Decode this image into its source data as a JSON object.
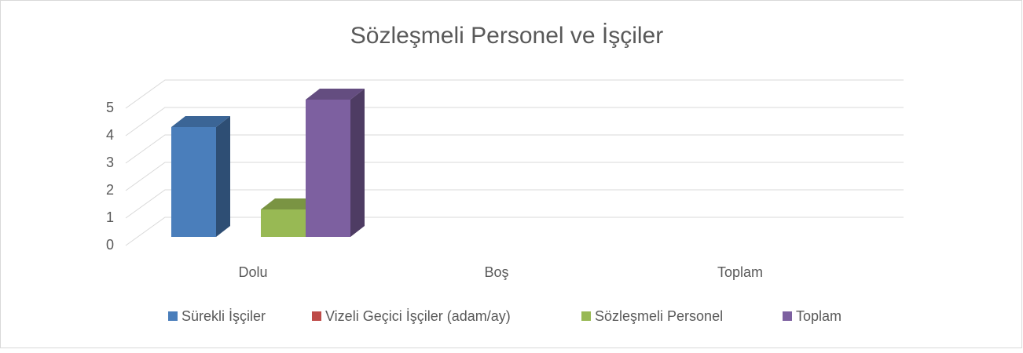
{
  "chart_data": {
    "type": "bar3d",
    "title": "Sözleşmeli Personel ve İşçiler",
    "categories": [
      "Dolu",
      "Boş",
      "Toplam"
    ],
    "series": [
      {
        "name": "Sürekli İşçiler",
        "color": "#4a7ebb",
        "values": [
          4,
          null,
          null
        ]
      },
      {
        "name": "Vizeli Geçici İşçiler (adam/ay)",
        "color": "#be4b48",
        "values": [
          0,
          null,
          null
        ]
      },
      {
        "name": "Sözleşmeli Personel",
        "color": "#98b954",
        "values": [
          1,
          null,
          null
        ]
      },
      {
        "name": "Toplam",
        "color": "#7d60a0",
        "values": [
          5,
          null,
          null
        ]
      }
    ],
    "ylim": [
      0,
      5
    ],
    "yticks": [
      0,
      1,
      2,
      3,
      4,
      5
    ],
    "grid": true,
    "legend": "bottom"
  }
}
